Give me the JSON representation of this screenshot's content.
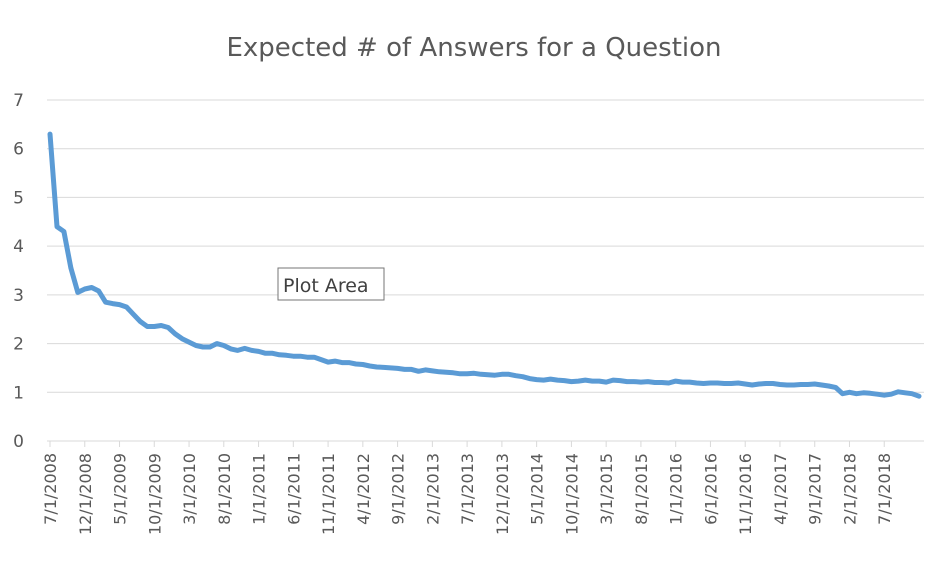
{
  "chart_data": {
    "type": "line",
    "title": "Expected # of Answers for a Question",
    "ylim": [
      0,
      7
    ],
    "y_ticks": [
      "0",
      "1",
      "2",
      "3",
      "4",
      "5",
      "6",
      "7"
    ],
    "x_ticks": [
      "7/1/2008",
      "12/1/2008",
      "5/1/2009",
      "10/1/2009",
      "3/1/2010",
      "8/1/2010",
      "1/1/2011",
      "6/1/2011",
      "11/1/2011",
      "4/1/2012",
      "9/1/2012",
      "2/1/2013",
      "7/1/2013",
      "12/1/2013",
      "5/1/2014",
      "10/1/2014",
      "3/1/2015",
      "8/1/2015",
      "1/1/2016",
      "6/1/2016",
      "11/1/2016",
      "4/1/2017",
      "9/1/2017",
      "2/1/2018",
      "7/1/2018"
    ],
    "grid": true,
    "series": [
      {
        "color": "#5b9bd5",
        "x": [
          "7/1/2008",
          "8/1/2008",
          "9/1/2008",
          "10/1/2008",
          "11/1/2008",
          "12/1/2008",
          "1/1/2009",
          "2/1/2009",
          "3/1/2009",
          "4/1/2009",
          "5/1/2009",
          "6/1/2009",
          "7/1/2009",
          "8/1/2009",
          "9/1/2009",
          "10/1/2009",
          "11/1/2009",
          "12/1/2009",
          "1/1/2010",
          "2/1/2010",
          "3/1/2010",
          "4/1/2010",
          "5/1/2010",
          "6/1/2010",
          "7/1/2010",
          "8/1/2010",
          "9/1/2010",
          "10/1/2010",
          "11/1/2010",
          "12/1/2010",
          "1/1/2011",
          "2/1/2011",
          "3/1/2011",
          "4/1/2011",
          "5/1/2011",
          "6/1/2011",
          "7/1/2011",
          "8/1/2011",
          "9/1/2011",
          "10/1/2011",
          "11/1/2011",
          "12/1/2011",
          "1/1/2012",
          "2/1/2012",
          "3/1/2012",
          "4/1/2012",
          "5/1/2012",
          "6/1/2012",
          "7/1/2012",
          "8/1/2012",
          "9/1/2012",
          "10/1/2012",
          "11/1/2012",
          "12/1/2012",
          "1/1/2013",
          "2/1/2013",
          "3/1/2013",
          "4/1/2013",
          "5/1/2013",
          "6/1/2013",
          "7/1/2013",
          "8/1/2013",
          "9/1/2013",
          "10/1/2013",
          "11/1/2013",
          "12/1/2013",
          "1/1/2014",
          "2/1/2014",
          "3/1/2014",
          "4/1/2014",
          "5/1/2014",
          "6/1/2014",
          "7/1/2014",
          "8/1/2014",
          "9/1/2014",
          "10/1/2014",
          "11/1/2014",
          "12/1/2014",
          "1/1/2015",
          "2/1/2015",
          "3/1/2015",
          "4/1/2015",
          "5/1/2015",
          "6/1/2015",
          "7/1/2015",
          "8/1/2015",
          "9/1/2015",
          "10/1/2015",
          "11/1/2015",
          "12/1/2015",
          "1/1/2016",
          "2/1/2016",
          "3/1/2016",
          "4/1/2016",
          "5/1/2016",
          "6/1/2016",
          "7/1/2016",
          "8/1/2016",
          "9/1/2016",
          "10/1/2016",
          "11/1/2016",
          "12/1/2016",
          "1/1/2017",
          "2/1/2017",
          "3/1/2017",
          "4/1/2017",
          "5/1/2017",
          "6/1/2017",
          "7/1/2017",
          "8/1/2017",
          "9/1/2017",
          "10/1/2017",
          "11/1/2017",
          "12/1/2017",
          "1/1/2018",
          "2/1/2018",
          "3/1/2018",
          "4/1/2018",
          "5/1/2018",
          "6/1/2018",
          "7/1/2018",
          "8/1/2018",
          "9/1/2018",
          "10/1/2018",
          "11/1/2018",
          "12/1/2018"
        ],
        "values": [
          6.3,
          4.4,
          4.3,
          3.55,
          3.05,
          3.12,
          3.15,
          3.08,
          2.85,
          2.82,
          2.8,
          2.75,
          2.6,
          2.45,
          2.35,
          2.35,
          2.37,
          2.33,
          2.2,
          2.1,
          2.03,
          1.96,
          1.93,
          1.93,
          2.0,
          1.96,
          1.89,
          1.86,
          1.9,
          1.86,
          1.84,
          1.8,
          1.8,
          1.77,
          1.76,
          1.74,
          1.74,
          1.72,
          1.72,
          1.67,
          1.62,
          1.64,
          1.61,
          1.61,
          1.58,
          1.57,
          1.54,
          1.52,
          1.51,
          1.5,
          1.49,
          1.47,
          1.47,
          1.43,
          1.46,
          1.44,
          1.42,
          1.41,
          1.4,
          1.38,
          1.38,
          1.39,
          1.37,
          1.36,
          1.35,
          1.37,
          1.37,
          1.34,
          1.32,
          1.28,
          1.26,
          1.25,
          1.27,
          1.25,
          1.24,
          1.22,
          1.23,
          1.25,
          1.23,
          1.23,
          1.21,
          1.25,
          1.24,
          1.22,
          1.22,
          1.21,
          1.22,
          1.2,
          1.2,
          1.19,
          1.23,
          1.21,
          1.21,
          1.19,
          1.18,
          1.19,
          1.19,
          1.18,
          1.18,
          1.19,
          1.17,
          1.15,
          1.17,
          1.18,
          1.18,
          1.16,
          1.15,
          1.15,
          1.16,
          1.16,
          1.17,
          1.15,
          1.13,
          1.1,
          0.97,
          1.0,
          0.97,
          0.99,
          0.98,
          0.96,
          0.94,
          0.96,
          1.01,
          0.99,
          0.97,
          0.92
        ]
      }
    ]
  },
  "tooltip": {
    "label": "Plot Area"
  }
}
